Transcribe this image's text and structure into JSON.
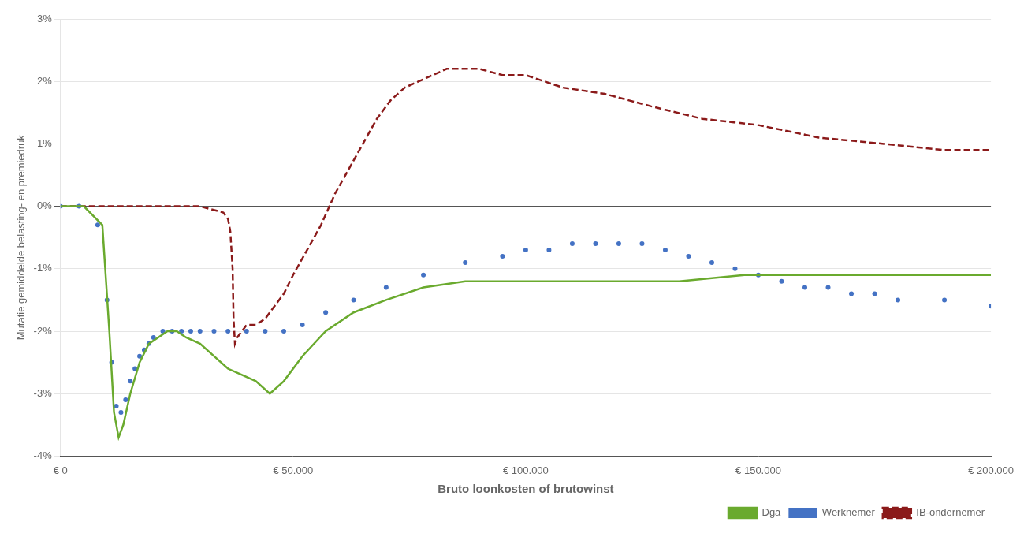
{
  "chart_data": {
    "type": "line",
    "xlabel": "Bruto loonkosten of brutowinst",
    "ylabel": "Mutatie gemiddelde belasting- en premiedruk",
    "xlim": [
      0,
      200000
    ],
    "ylim": [
      -0.04,
      0.03
    ],
    "xticks": [
      {
        "value": 0,
        "label": "€ 0"
      },
      {
        "value": 50000,
        "label": "€ 50.000"
      },
      {
        "value": 100000,
        "label": "€ 100.000"
      },
      {
        "value": 150000,
        "label": "€ 150.000"
      },
      {
        "value": 200000,
        "label": "€ 200.000"
      }
    ],
    "yticks": [
      {
        "value": -0.04,
        "label": "-4%"
      },
      {
        "value": -0.03,
        "label": "-3%"
      },
      {
        "value": -0.02,
        "label": "-2%"
      },
      {
        "value": -0.01,
        "label": "-1%"
      },
      {
        "value": 0.0,
        "label": "0%"
      },
      {
        "value": 0.01,
        "label": "1%"
      },
      {
        "value": 0.02,
        "label": "2%"
      },
      {
        "value": 0.03,
        "label": "3%"
      }
    ],
    "grid": "y",
    "legend": "lower right",
    "series": [
      {
        "name": "Dga",
        "color": "#6aaa2e",
        "line_style": "solid",
        "marker": "none",
        "x": [
          0,
          5000,
          9000,
          10500,
          11500,
          12500,
          13500,
          15000,
          17000,
          19000,
          21000,
          23000,
          25000,
          27000,
          30000,
          33000,
          36000,
          39000,
          42000,
          45000,
          48000,
          52000,
          57000,
          63000,
          70000,
          78000,
          87000,
          97000,
          108000,
          120000,
          133000,
          147000,
          160000,
          175000,
          190000,
          200000
        ],
        "values": [
          0,
          0,
          -0.003,
          -0.02,
          -0.033,
          -0.037,
          -0.035,
          -0.03,
          -0.025,
          -0.022,
          -0.021,
          -0.02,
          -0.02,
          -0.021,
          -0.022,
          -0.024,
          -0.026,
          -0.027,
          -0.028,
          -0.03,
          -0.028,
          -0.024,
          -0.02,
          -0.017,
          -0.015,
          -0.013,
          -0.012,
          -0.012,
          -0.012,
          -0.012,
          -0.012,
          -0.011,
          -0.011,
          -0.011,
          -0.011,
          -0.011
        ]
      },
      {
        "name": "Werknemer",
        "color": "#4472c4",
        "line_style": "none",
        "marker": "circle",
        "x": [
          0,
          4000,
          8000,
          10000,
          11000,
          12000,
          13000,
          14000,
          15000,
          16000,
          17000,
          18000,
          19000,
          20000,
          22000,
          24000,
          26000,
          28000,
          30000,
          33000,
          36000,
          40000,
          44000,
          48000,
          52000,
          57000,
          63000,
          70000,
          78000,
          87000,
          95000,
          100000,
          105000,
          110000,
          115000,
          120000,
          125000,
          130000,
          135000,
          140000,
          145000,
          150000,
          155000,
          160000,
          165000,
          170000,
          175000,
          180000,
          190000,
          200000
        ],
        "values": [
          0,
          0,
          -0.003,
          -0.015,
          -0.025,
          -0.032,
          -0.033,
          -0.031,
          -0.028,
          -0.026,
          -0.024,
          -0.023,
          -0.022,
          -0.021,
          -0.02,
          -0.02,
          -0.02,
          -0.02,
          -0.02,
          -0.02,
          -0.02,
          -0.02,
          -0.02,
          -0.02,
          -0.019,
          -0.017,
          -0.015,
          -0.013,
          -0.011,
          -0.009,
          -0.008,
          -0.007,
          -0.007,
          -0.006,
          -0.006,
          -0.006,
          -0.006,
          -0.007,
          -0.008,
          -0.009,
          -0.01,
          -0.011,
          -0.012,
          -0.013,
          -0.013,
          -0.014,
          -0.014,
          -0.015,
          -0.015,
          -0.016
        ]
      },
      {
        "name": "IB-ondernemer",
        "color": "#8b1a1a",
        "line_style": "dashed",
        "marker": "none",
        "x": [
          0,
          10000,
          20000,
          30000,
          35000,
          36000,
          36500,
          37000,
          37200,
          37500,
          38000,
          39000,
          40000,
          42000,
          44000,
          46000,
          48000,
          50000,
          53000,
          56000,
          59000,
          62000,
          65000,
          68000,
          71000,
          74000,
          77000,
          80000,
          83000,
          86000,
          88000,
          90000,
          95000,
          100000,
          108000,
          117000,
          127000,
          138000,
          150000,
          163000,
          177000,
          190000,
          200000
        ],
        "values": [
          0,
          0,
          0,
          0,
          -0.001,
          -0.002,
          -0.004,
          -0.01,
          -0.018,
          -0.022,
          -0.021,
          -0.02,
          -0.019,
          -0.019,
          -0.018,
          -0.016,
          -0.014,
          -0.011,
          -0.007,
          -0.003,
          0.002,
          0.006,
          0.01,
          0.014,
          0.017,
          0.019,
          0.02,
          0.021,
          0.022,
          0.022,
          0.022,
          0.022,
          0.021,
          0.021,
          0.019,
          0.018,
          0.016,
          0.014,
          0.013,
          0.011,
          0.01,
          0.009,
          0.009
        ]
      }
    ]
  }
}
